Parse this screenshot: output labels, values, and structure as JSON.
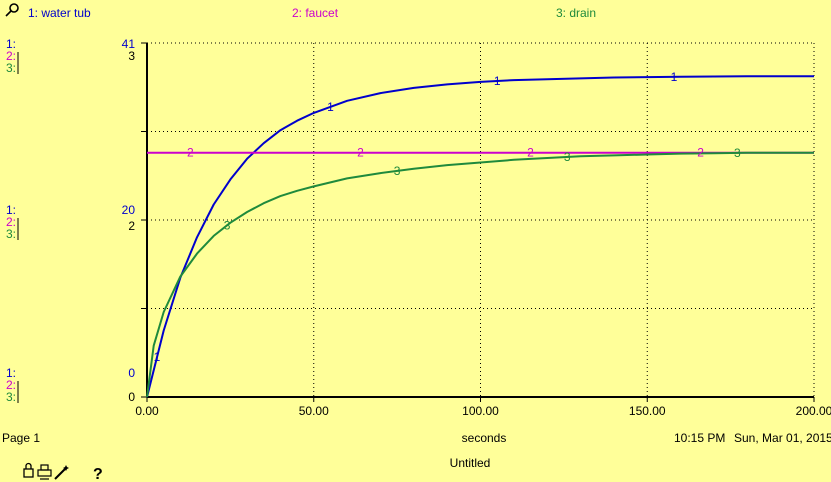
{
  "chart_data": {
    "type": "line",
    "x": {
      "label": "seconds",
      "min": 0,
      "max": 200,
      "ticks": [
        0,
        50,
        100,
        150,
        200
      ],
      "tick_labels": [
        "0.00",
        "50.00",
        "100.00",
        "150.00",
        "200.00"
      ]
    },
    "series": [
      {
        "id": "1",
        "name": "1: water tub",
        "color": "#0000cc",
        "marker": "1",
        "axis": {
          "min": 0,
          "max": 41,
          "top_label": "41",
          "mid_label": "20",
          "bottom_label": "0"
        },
        "x": [
          0,
          5,
          10,
          15,
          20,
          25,
          30,
          35,
          40,
          45,
          50,
          60,
          70,
          80,
          90,
          100,
          110,
          120,
          130,
          140,
          150,
          160,
          170,
          180,
          190,
          200
        ],
        "values": [
          0,
          7.7,
          13.8,
          18.5,
          22.3,
          25.2,
          27.6,
          29.4,
          30.9,
          32.0,
          32.9,
          34.3,
          35.2,
          35.8,
          36.2,
          36.5,
          36.7,
          36.8,
          36.9,
          37.0,
          37.05,
          37.1,
          37.12,
          37.14,
          37.15,
          37.16
        ],
        "marker_x": [
          3,
          55,
          105,
          158
        ]
      },
      {
        "id": "2",
        "name": "2: faucet",
        "color": "#cc00cc",
        "marker": "2",
        "axis": {
          "min": 0,
          "max": 4,
          "top_label": "",
          "mid_label": "",
          "bottom_label": ""
        },
        "x": [
          0,
          200
        ],
        "values": [
          2.76,
          2.76
        ],
        "marker_x": [
          13,
          64,
          115,
          166
        ]
      },
      {
        "id": "3",
        "name": "3: drain",
        "color": "#1f8a3c",
        "marker": "3",
        "axis": {
          "min": 0,
          "max": 4,
          "top_label": "3",
          "mid_label": "2",
          "bottom_label": "0"
        },
        "x": [
          0,
          2,
          5,
          10,
          15,
          20,
          25,
          30,
          35,
          40,
          45,
          50,
          60,
          70,
          80,
          90,
          100,
          110,
          120,
          130,
          140,
          150,
          160,
          170,
          180,
          190,
          200
        ],
        "values": [
          0,
          0.58,
          0.96,
          1.36,
          1.62,
          1.82,
          1.97,
          2.09,
          2.19,
          2.27,
          2.33,
          2.38,
          2.47,
          2.53,
          2.58,
          2.62,
          2.65,
          2.68,
          2.7,
          2.72,
          2.73,
          2.74,
          2.75,
          2.755,
          2.76,
          2.76,
          2.76
        ],
        "marker_x": [
          24,
          75,
          126,
          177
        ]
      }
    ],
    "grid": true
  },
  "footer": {
    "page": "Page 1",
    "time": "10:15 PM",
    "date": "Sun, Mar 01, 2015",
    "doc": "Untitled"
  },
  "toolbar": {
    "pin_icon": "pin-icon",
    "lock_icon": "lock-icon",
    "print_icon": "print-icon",
    "wand_icon": "wand-icon",
    "help_label": "?"
  },
  "left_axis_labels": {
    "s1": "1:",
    "s2": "2:",
    "s3": "3:"
  }
}
